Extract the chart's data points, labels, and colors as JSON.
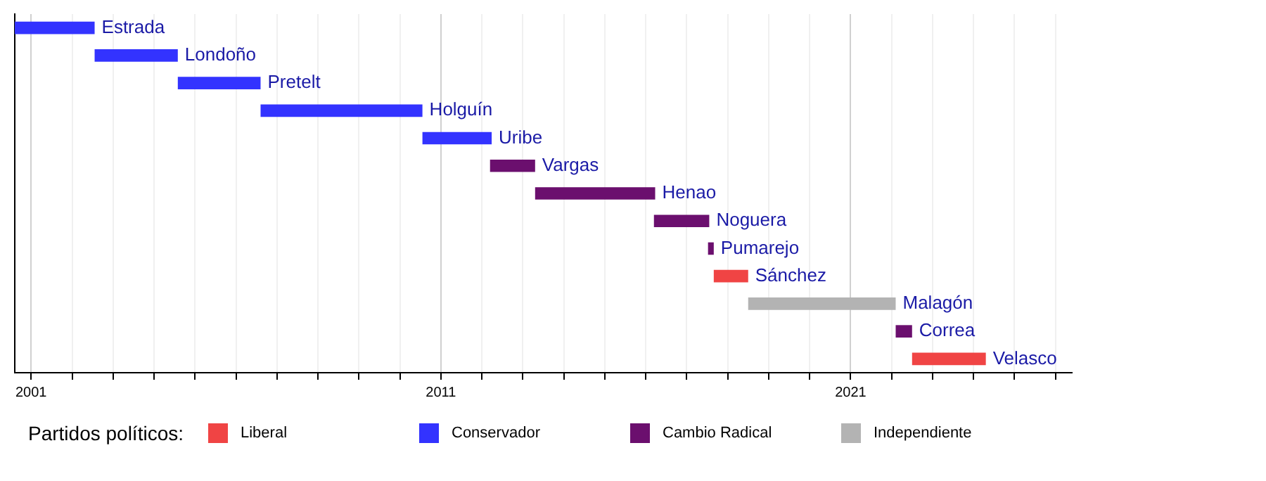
{
  "chart_data": {
    "type": "bar",
    "orientation": "horizontal",
    "legend_title": "Partidos políticos:",
    "legend": "bottom",
    "grid": "x",
    "categories": [
      "Estrada",
      "Londoño",
      "Pretelt",
      "Holguín",
      "Uribe",
      "Vargas",
      "Henao",
      "Noguera",
      "Pumarejo",
      "Sánchez",
      "Malagón",
      "Correa",
      "Velasco"
    ],
    "series": [
      {
        "name": "Liberal",
        "color": "#f04444",
        "values": [
          null,
          null,
          null,
          null,
          null,
          null,
          null,
          null,
          null,
          0.84,
          null,
          null,
          1.8
        ],
        "base": [
          null,
          null,
          null,
          null,
          null,
          null,
          null,
          null,
          null,
          2017.66,
          null,
          null,
          2022.5
        ]
      },
      {
        "name": "Conservador",
        "color": "#3333ff",
        "values": [
          1.95,
          2.03,
          2.02,
          3.95,
          1.69,
          null,
          null,
          null,
          null,
          null,
          null,
          null,
          null
        ],
        "base": [
          2000.6,
          2002.55,
          2004.58,
          2006.6,
          2010.55,
          null,
          null,
          null,
          null,
          null,
          null,
          null,
          null
        ]
      },
      {
        "name": "Cambio Radical",
        "color": "#6b0f6e",
        "values": [
          null,
          null,
          null,
          null,
          null,
          1.1,
          2.93,
          1.35,
          0.14,
          null,
          null,
          0.4,
          null
        ],
        "base": [
          null,
          null,
          null,
          null,
          null,
          2012.2,
          2013.3,
          2016.2,
          2017.52,
          null,
          null,
          2022.1,
          null
        ]
      },
      {
        "name": "Independiente",
        "color": "#b3b3b3",
        "values": [
          null,
          null,
          null,
          null,
          null,
          null,
          null,
          null,
          null,
          null,
          3.6,
          null,
          null
        ],
        "base": [
          null,
          null,
          null,
          null,
          null,
          null,
          null,
          null,
          null,
          null,
          2018.5,
          null,
          null
        ]
      }
    ],
    "xlim": [
      2000.6,
      2026.4
    ],
    "xticks": [
      2001,
      {
        "value": 2002,
        "label": null
      },
      {
        "value": 2003,
        "label": null
      },
      {
        "value": 2004,
        "label": null
      },
      {
        "value": 2005,
        "label": null
      },
      {
        "value": 2006,
        "label": null
      },
      {
        "value": 2007,
        "label": null
      },
      {
        "value": 2008,
        "label": null
      },
      {
        "value": 2009,
        "label": null
      },
      {
        "value": 2010,
        "label": null
      },
      2011,
      {
        "value": 2012,
        "label": null
      },
      {
        "value": 2013,
        "label": null
      },
      {
        "value": 2014,
        "label": null
      },
      {
        "value": 2015,
        "label": null
      },
      {
        "value": 2016,
        "label": null
      },
      {
        "value": 2017,
        "label": null
      },
      {
        "value": 2018,
        "label": null
      },
      {
        "value": 2019,
        "label": null
      },
      {
        "value": 2020,
        "label": null
      },
      2021,
      {
        "value": 2022,
        "label": null
      },
      {
        "value": 2023,
        "label": null
      },
      {
        "value": 2024,
        "label": null
      },
      {
        "value": 2025,
        "label": null
      },
      {
        "value": 2026,
        "label": null
      }
    ]
  }
}
